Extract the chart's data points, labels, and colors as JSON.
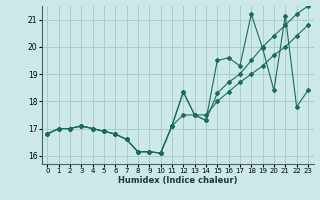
{
  "xlabel": "Humidex (Indice chaleur)",
  "bg_color": "#cce8e8",
  "grid_color": "#aacccc",
  "line_color": "#1a6b5a",
  "xlim": [
    -0.5,
    23.5
  ],
  "ylim": [
    15.7,
    21.5
  ],
  "yticks": [
    16,
    17,
    18,
    19,
    20,
    21
  ],
  "xticks": [
    0,
    1,
    2,
    3,
    4,
    5,
    6,
    7,
    8,
    9,
    10,
    11,
    12,
    13,
    14,
    15,
    16,
    17,
    18,
    19,
    20,
    21,
    22,
    23
  ],
  "series": [
    [
      16.8,
      17.0,
      17.0,
      17.1,
      17.0,
      16.9,
      16.8,
      16.6,
      16.15,
      16.15,
      16.1,
      17.1,
      18.35,
      17.5,
      17.3,
      19.5,
      19.6,
      19.3,
      21.2,
      19.95,
      18.4,
      21.15,
      17.8,
      18.4
    ],
    [
      16.8,
      17.0,
      17.0,
      17.1,
      17.0,
      16.9,
      16.8,
      16.6,
      16.15,
      16.15,
      16.1,
      17.1,
      18.35,
      17.5,
      17.3,
      18.3,
      18.7,
      19.0,
      19.5,
      20.0,
      20.4,
      20.8,
      21.2,
      21.5
    ],
    [
      16.8,
      17.0,
      17.0,
      17.1,
      17.0,
      16.9,
      16.8,
      16.6,
      16.15,
      16.15,
      16.1,
      17.1,
      17.5,
      17.5,
      17.5,
      18.0,
      18.35,
      18.7,
      19.0,
      19.3,
      19.7,
      20.0,
      20.4,
      20.8
    ]
  ]
}
